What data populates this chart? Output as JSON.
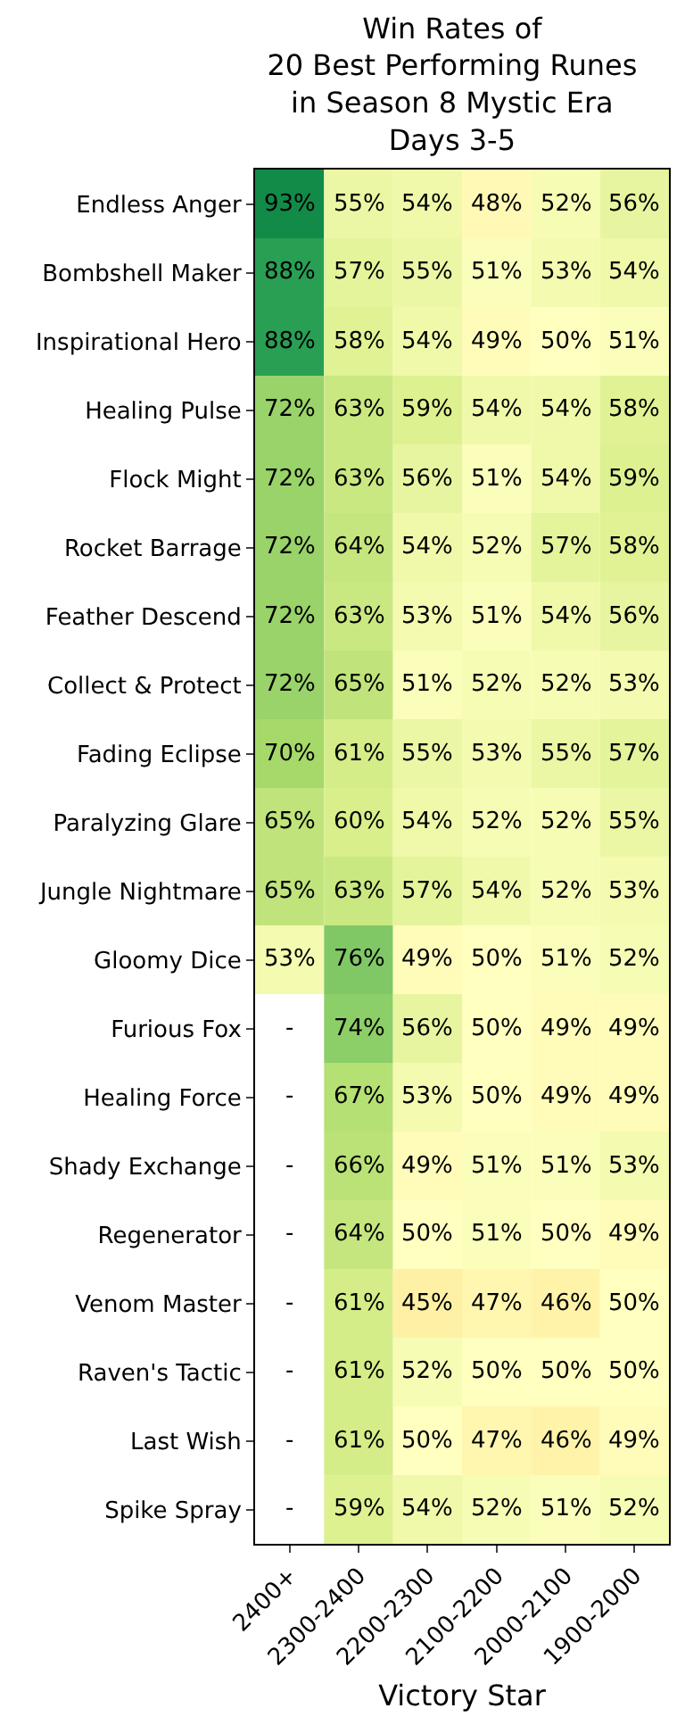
{
  "chart_data": {
    "type": "heatmap",
    "title": "Win Rates of\n20 Best Performing Runes\nin Season 8 Mystic Era\nDays 3-5",
    "xlabel": "Victory Star",
    "categories": [
      "2400+",
      "2300-2400",
      "2200-2300",
      "2100-2200",
      "2000-2100",
      "1900-2000"
    ],
    "y_categories": [
      "Endless Anger",
      "Bombshell Maker",
      "Inspirational Hero",
      "Healing Pulse",
      "Flock Might",
      "Rocket Barrage",
      "Feather Descend",
      "Collect & Protect",
      "Fading Eclipse",
      "Paralyzing Glare",
      "Jungle Nightmare",
      "Gloomy Dice",
      "Furious Fox",
      "Healing Force",
      "Shady Exchange",
      "Regenerator",
      "Venom Master",
      "Raven's Tactic",
      "Last Wish",
      "Spike Spray"
    ],
    "cells": [
      [
        93,
        55,
        54,
        48,
        52,
        56
      ],
      [
        88,
        57,
        55,
        51,
        53,
        54
      ],
      [
        88,
        58,
        54,
        49,
        50,
        51
      ],
      [
        72,
        63,
        59,
        54,
        54,
        58
      ],
      [
        72,
        63,
        56,
        51,
        54,
        59
      ],
      [
        72,
        64,
        54,
        52,
        57,
        58
      ],
      [
        72,
        63,
        53,
        51,
        54,
        56
      ],
      [
        72,
        65,
        51,
        52,
        52,
        53
      ],
      [
        70,
        61,
        55,
        53,
        55,
        57
      ],
      [
        65,
        60,
        54,
        52,
        52,
        55
      ],
      [
        65,
        63,
        57,
        54,
        52,
        53
      ],
      [
        53,
        76,
        49,
        50,
        51,
        52
      ],
      [
        null,
        74,
        56,
        50,
        49,
        49
      ],
      [
        null,
        67,
        53,
        50,
        49,
        49
      ],
      [
        null,
        66,
        49,
        51,
        51,
        53
      ],
      [
        null,
        64,
        50,
        51,
        50,
        49
      ],
      [
        null,
        61,
        45,
        47,
        46,
        50
      ],
      [
        null,
        61,
        52,
        50,
        50,
        50
      ],
      [
        null,
        61,
        50,
        47,
        46,
        49
      ],
      [
        null,
        59,
        54,
        52,
        51,
        52
      ]
    ],
    "cell_labels": [
      [
        "93%",
        "55%",
        "54%",
        "48%",
        "52%",
        "56%"
      ],
      [
        "88%",
        "57%",
        "55%",
        "51%",
        "53%",
        "54%"
      ],
      [
        "88%",
        "58%",
        "54%",
        "49%",
        "50%",
        "51%"
      ],
      [
        "72%",
        "63%",
        "59%",
        "54%",
        "54%",
        "58%"
      ],
      [
        "72%",
        "63%",
        "56%",
        "51%",
        "54%",
        "59%"
      ],
      [
        "72%",
        "64%",
        "54%",
        "52%",
        "57%",
        "58%"
      ],
      [
        "72%",
        "63%",
        "53%",
        "51%",
        "54%",
        "56%"
      ],
      [
        "72%",
        "65%",
        "51%",
        "52%",
        "52%",
        "53%"
      ],
      [
        "70%",
        "61%",
        "55%",
        "53%",
        "55%",
        "57%"
      ],
      [
        "65%",
        "60%",
        "54%",
        "52%",
        "52%",
        "55%"
      ],
      [
        "65%",
        "63%",
        "57%",
        "54%",
        "52%",
        "53%"
      ],
      [
        "53%",
        "76%",
        "49%",
        "50%",
        "51%",
        "52%"
      ],
      [
        "-",
        "74%",
        "56%",
        "50%",
        "49%",
        "49%"
      ],
      [
        "-",
        "67%",
        "53%",
        "50%",
        "49%",
        "49%"
      ],
      [
        "-",
        "66%",
        "49%",
        "51%",
        "51%",
        "53%"
      ],
      [
        "-",
        "64%",
        "50%",
        "51%",
        "50%",
        "49%"
      ],
      [
        "-",
        "61%",
        "45%",
        "47%",
        "46%",
        "50%"
      ],
      [
        "-",
        "61%",
        "52%",
        "50%",
        "50%",
        "50%"
      ],
      [
        "-",
        "61%",
        "50%",
        "47%",
        "46%",
        "49%"
      ],
      [
        "-",
        "59%",
        "54%",
        "52%",
        "51%",
        "52%"
      ]
    ]
  }
}
